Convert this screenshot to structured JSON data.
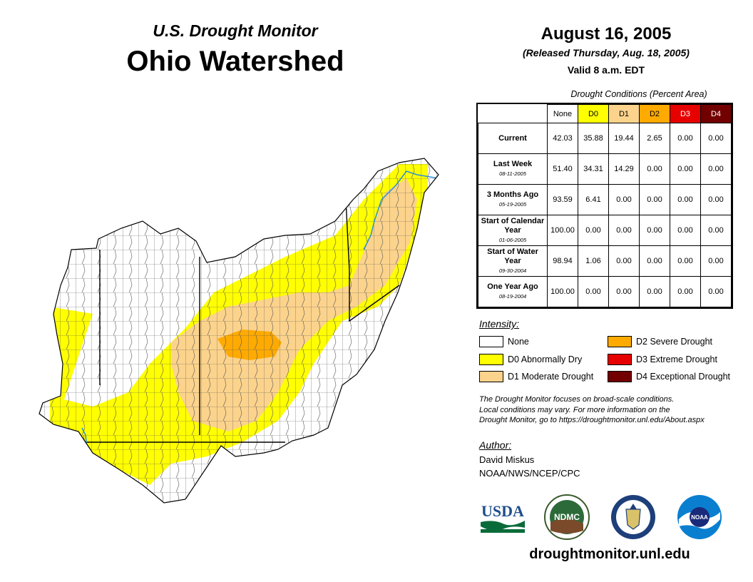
{
  "header": {
    "subtitle": "U.S. Drought Monitor",
    "title": "Ohio Watershed",
    "date": "August 16, 2005",
    "released": "(Released Thursday, Aug. 18, 2005)",
    "valid": "Valid 8 a.m. EDT"
  },
  "table": {
    "caption": "Drought Conditions (Percent Area)",
    "columns": [
      "None",
      "D0",
      "D1",
      "D2",
      "D3",
      "D4"
    ],
    "rows": [
      {
        "label": "Current",
        "date": "",
        "values": [
          "42.03",
          "35.88",
          "19.44",
          "2.65",
          "0.00",
          "0.00"
        ]
      },
      {
        "label": "Last Week",
        "date": "08-11-2005",
        "values": [
          "51.40",
          "34.31",
          "14.29",
          "0.00",
          "0.00",
          "0.00"
        ]
      },
      {
        "label": "3 Months Ago",
        "date": "05-19-2005",
        "values": [
          "93.59",
          "6.41",
          "0.00",
          "0.00",
          "0.00",
          "0.00"
        ]
      },
      {
        "label": "Start of Calendar Year",
        "date": "01-06-2005",
        "values": [
          "100.00",
          "0.00",
          "0.00",
          "0.00",
          "0.00",
          "0.00"
        ]
      },
      {
        "label": "Start of Water Year",
        "date": "09-30-2004",
        "values": [
          "98.94",
          "1.06",
          "0.00",
          "0.00",
          "0.00",
          "0.00"
        ]
      },
      {
        "label": "One Year Ago",
        "date": "08-19-2004",
        "values": [
          "100.00",
          "0.00",
          "0.00",
          "0.00",
          "0.00",
          "0.00"
        ]
      }
    ]
  },
  "legend": {
    "heading": "Intensity:",
    "items": [
      {
        "label": "None",
        "color": "#ffffff"
      },
      {
        "label": "D0 Abnormally Dry",
        "color": "#ffff00"
      },
      {
        "label": "D1 Moderate Drought",
        "color": "#fcd38c"
      },
      {
        "label": "D2 Severe Drought",
        "color": "#ffaa00"
      },
      {
        "label": "D3 Extreme Drought",
        "color": "#e60000"
      },
      {
        "label": "D4 Exceptional Drought",
        "color": "#730000"
      }
    ]
  },
  "note": {
    "line1": "The Drought Monitor focuses on broad-scale conditions.",
    "line2": "Local conditions may vary. For more information on the",
    "line3": "Drought Monitor, go to https://droughtmonitor.unl.edu/About.aspx"
  },
  "author": {
    "heading": "Author:",
    "name": "David Miskus",
    "org": "NOAA/NWS/NCEP/CPC"
  },
  "logos": {
    "usda": "USDA",
    "ndmc": "NDMC",
    "noaa": "NOAA"
  },
  "footer": {
    "website": "droughtmonitor.unl.edu"
  }
}
